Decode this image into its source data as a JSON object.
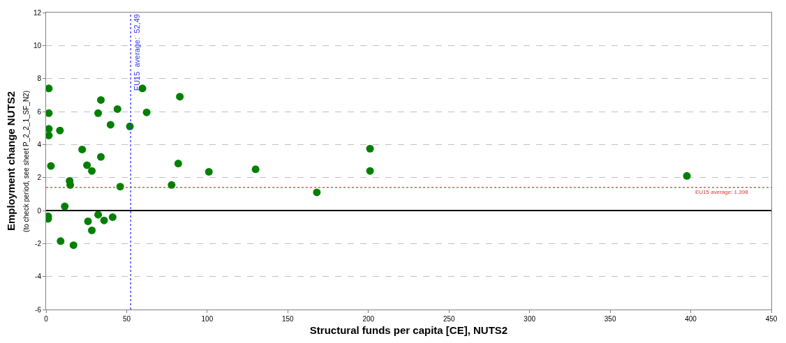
{
  "chart_data": {
    "type": "scatter",
    "xlabel": "Structural funds per capita [CE], NUTS2",
    "ylabel": "Employment change NUTS2",
    "annotations": [
      "(to check period, see sheet P_2_2_1_SF_N2)"
    ],
    "x": [
      1.7,
      1.7,
      1.7,
      1.7,
      3,
      8.6,
      1.3,
      1.3,
      9,
      11.6,
      14.6,
      15,
      17,
      22.4,
      25.4,
      26,
      28.4,
      28.4,
      32.3,
      32.3,
      34,
      34,
      36,
      40,
      41.3,
      44.3,
      46,
      52,
      59.8,
      62.4,
      77.9,
      82,
      83,
      101,
      130,
      168,
      201,
      201,
      397.6
    ],
    "series": [
      {
        "color": "#008000",
        "values": [
          7.4,
          5.9,
          4.95,
          4.55,
          2.7,
          4.85,
          -0.35,
          -0.5,
          -1.85,
          0.25,
          1.8,
          1.55,
          -2.1,
          3.7,
          2.75,
          -0.65,
          2.4,
          -1.2,
          5.9,
          -0.25,
          6.7,
          3.25,
          -0.6,
          5.2,
          -0.4,
          6.15,
          1.45,
          5.1,
          7.4,
          5.95,
          1.55,
          2.85,
          6.9,
          2.35,
          2.5,
          1.1,
          3.75,
          2.4,
          2.1
        ]
      }
    ],
    "xlim": [
      0,
      450
    ],
    "xticks": [
      0,
      50,
      100,
      150,
      200,
      250,
      300,
      350,
      400,
      450
    ],
    "ylim": [
      -6,
      12
    ],
    "yticks": [
      -6,
      -4,
      -2,
      0,
      2,
      4,
      6,
      8,
      10,
      12
    ],
    "grid": "y",
    "marker": "circle",
    "ref_lines": [
      {
        "axis": "x",
        "value": 52.49,
        "label": "EU15  average:  52,49",
        "color": "#3333ff",
        "line_style": "dotted"
      },
      {
        "axis": "y",
        "value": 1.398,
        "label": "EU15 average: 1,398",
        "color": "#e03030",
        "line_style": "dotted"
      }
    ]
  }
}
